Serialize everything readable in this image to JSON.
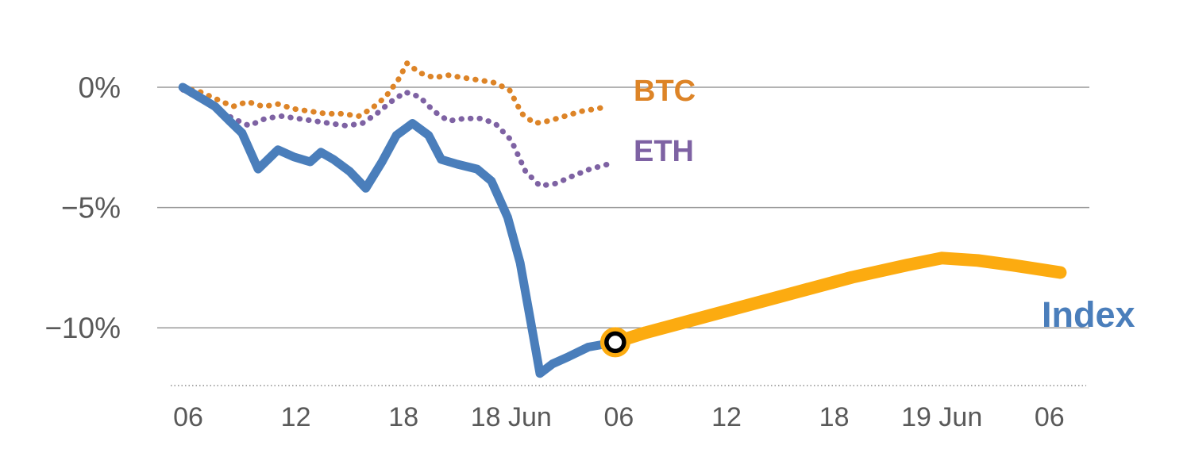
{
  "chart_data": {
    "type": "line",
    "title": "",
    "grid": "horizontal",
    "background": "#ffffff",
    "ylim": [
      -12.5,
      1.5
    ],
    "x_hours_range": [
      -0.5,
      49
    ],
    "colors": {
      "grid": "#9a9a9a",
      "axis": "#8c8c8c",
      "axis_text": "#595959"
    },
    "y_ticks": [
      {
        "value": 0,
        "label": "0%"
      },
      {
        "value": -5,
        "label": "−5%"
      },
      {
        "value": -10,
        "label": "−10%"
      }
    ],
    "x_ticks": [
      {
        "value": 0,
        "label": "06"
      },
      {
        "value": 6,
        "label": "12"
      },
      {
        "value": 12,
        "label": "18"
      },
      {
        "value": 18,
        "label": "18 Jun"
      },
      {
        "value": 24,
        "label": "06"
      },
      {
        "value": 30,
        "label": "12"
      },
      {
        "value": 36,
        "label": "18"
      },
      {
        "value": 42,
        "label": "19 Jun"
      },
      {
        "value": 48,
        "label": "06"
      }
    ],
    "series": [
      {
        "id": "btc",
        "label": "BTC",
        "color": "#dd8427",
        "style": "dotted",
        "width": 7,
        "points": [
          [
            -0.3,
            0.0
          ],
          [
            0.7,
            -0.2
          ],
          [
            1.6,
            -0.5
          ],
          [
            2.5,
            -0.8
          ],
          [
            3.3,
            -0.6
          ],
          [
            4.2,
            -0.8
          ],
          [
            5.0,
            -0.7
          ],
          [
            5.9,
            -0.9
          ],
          [
            6.8,
            -1.0
          ],
          [
            7.7,
            -1.1
          ],
          [
            8.6,
            -1.1
          ],
          [
            9.5,
            -1.2
          ],
          [
            10.2,
            -0.9
          ],
          [
            11.0,
            -0.4
          ],
          [
            11.7,
            0.3
          ],
          [
            12.2,
            1.0
          ],
          [
            12.9,
            0.6
          ],
          [
            13.7,
            0.4
          ],
          [
            14.5,
            0.5
          ],
          [
            15.3,
            0.4
          ],
          [
            16.2,
            0.3
          ],
          [
            17.0,
            0.2
          ],
          [
            17.9,
            -0.1
          ],
          [
            18.6,
            -1.1
          ],
          [
            19.3,
            -1.5
          ],
          [
            20.1,
            -1.4
          ],
          [
            21.0,
            -1.2
          ],
          [
            21.9,
            -1.0
          ],
          [
            22.7,
            -0.9
          ],
          [
            23.4,
            -0.8
          ]
        ]
      },
      {
        "id": "eth",
        "label": "ETH",
        "color": "#7e62a3",
        "style": "dotted",
        "width": 7,
        "points": [
          [
            -0.3,
            -0.1
          ],
          [
            0.7,
            -0.5
          ],
          [
            1.6,
            -0.9
          ],
          [
            2.5,
            -1.3
          ],
          [
            3.4,
            -1.6
          ],
          [
            4.3,
            -1.3
          ],
          [
            5.2,
            -1.2
          ],
          [
            6.1,
            -1.3
          ],
          [
            7.0,
            -1.4
          ],
          [
            7.9,
            -1.5
          ],
          [
            8.8,
            -1.6
          ],
          [
            9.7,
            -1.5
          ],
          [
            10.5,
            -1.1
          ],
          [
            11.3,
            -0.6
          ],
          [
            12.1,
            -0.2
          ],
          [
            12.9,
            -0.4
          ],
          [
            13.7,
            -1.0
          ],
          [
            14.5,
            -1.4
          ],
          [
            15.4,
            -1.3
          ],
          [
            16.3,
            -1.3
          ],
          [
            17.1,
            -1.5
          ],
          [
            18.0,
            -2.2
          ],
          [
            18.8,
            -3.5
          ],
          [
            19.6,
            -4.1
          ],
          [
            20.5,
            -4.0
          ],
          [
            21.4,
            -3.7
          ],
          [
            22.4,
            -3.4
          ],
          [
            23.4,
            -3.2
          ]
        ]
      },
      {
        "id": "index",
        "label": "Index",
        "color": "#4a7ebb",
        "style": "solid",
        "width": 11,
        "points": [
          [
            -0.3,
            0.0
          ],
          [
            0.6,
            -0.4
          ],
          [
            1.5,
            -0.8
          ],
          [
            2.3,
            -1.4
          ],
          [
            3.0,
            -1.9
          ],
          [
            3.9,
            -3.4
          ],
          [
            5.0,
            -2.6
          ],
          [
            5.9,
            -2.9
          ],
          [
            6.8,
            -3.1
          ],
          [
            7.4,
            -2.7
          ],
          [
            8.1,
            -3.0
          ],
          [
            9.0,
            -3.5
          ],
          [
            9.9,
            -4.2
          ],
          [
            10.8,
            -3.1
          ],
          [
            11.6,
            -2.0
          ],
          [
            12.5,
            -1.5
          ],
          [
            13.4,
            -2.0
          ],
          [
            14.1,
            -3.0
          ],
          [
            15.0,
            -3.2
          ],
          [
            16.1,
            -3.4
          ],
          [
            16.9,
            -3.9
          ],
          [
            17.8,
            -5.4
          ],
          [
            18.5,
            -7.3
          ],
          [
            19.2,
            -10.2
          ],
          [
            19.6,
            -11.9
          ],
          [
            20.3,
            -11.5
          ],
          [
            21.2,
            -11.2
          ],
          [
            22.3,
            -10.8
          ],
          [
            23.8,
            -10.6
          ]
        ]
      },
      {
        "id": "index-continuation",
        "label": "",
        "color": "#fcab10",
        "style": "solid",
        "width": 16,
        "points": [
          [
            23.8,
            -10.6
          ],
          [
            25.5,
            -10.2
          ],
          [
            28.0,
            -9.7
          ],
          [
            31.0,
            -9.1
          ],
          [
            34.0,
            -8.5
          ],
          [
            37.0,
            -7.9
          ],
          [
            40.0,
            -7.4
          ],
          [
            42.0,
            -7.1
          ],
          [
            44.0,
            -7.2
          ],
          [
            46.0,
            -7.4
          ],
          [
            48.6,
            -7.7
          ]
        ]
      }
    ],
    "marker": {
      "x": 23.8,
      "y": -10.6,
      "halo_color": "#fcab10",
      "ring_color": "#000000",
      "center_color": "#ffffff"
    }
  }
}
